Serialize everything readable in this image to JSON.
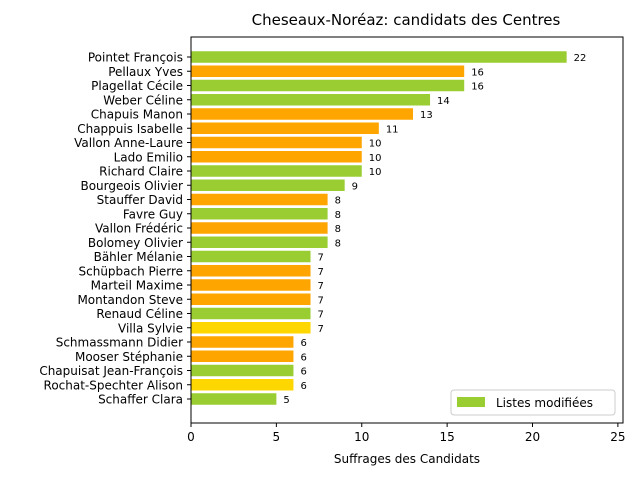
{
  "chart_data": {
    "type": "bar",
    "orientation": "horizontal",
    "title": "Cheseaux-Noréaz: candidats des Centres",
    "xlabel": "Suffrages des Candidats",
    "ylabel": "",
    "xlim": [
      0,
      25.3
    ],
    "xticks": [
      "0",
      "5",
      "10",
      "15",
      "20",
      "25"
    ],
    "grid": false,
    "legend": {
      "position": "bottom-right",
      "label": "Listes modifiées",
      "color": "#9acd32"
    },
    "colors": {
      "green": "#9acd32",
      "orange": "#ffa500",
      "gold": "#ffd700"
    },
    "bars": [
      {
        "name": "Pointet François",
        "value": 22,
        "color": "green"
      },
      {
        "name": "Pellaux Yves",
        "value": 16,
        "color": "orange"
      },
      {
        "name": "Plagellat Cécile",
        "value": 16,
        "color": "green"
      },
      {
        "name": "Weber Céline",
        "value": 14,
        "color": "green"
      },
      {
        "name": "Chapuis Manon",
        "value": 13,
        "color": "orange"
      },
      {
        "name": "Chappuis Isabelle",
        "value": 11,
        "color": "orange"
      },
      {
        "name": "Vallon Anne-Laure",
        "value": 10,
        "color": "orange"
      },
      {
        "name": "Lado Emilio",
        "value": 10,
        "color": "orange"
      },
      {
        "name": "Richard Claire",
        "value": 10,
        "color": "green"
      },
      {
        "name": "Bourgeois Olivier",
        "value": 9,
        "color": "green"
      },
      {
        "name": "Stauffer David",
        "value": 8,
        "color": "orange"
      },
      {
        "name": "Favre Guy",
        "value": 8,
        "color": "green"
      },
      {
        "name": "Vallon Frédéric",
        "value": 8,
        "color": "orange"
      },
      {
        "name": "Bolomey Olivier",
        "value": 8,
        "color": "green"
      },
      {
        "name": "Bähler Mélanie",
        "value": 7,
        "color": "green"
      },
      {
        "name": "Schüpbach Pierre",
        "value": 7,
        "color": "orange"
      },
      {
        "name": "Marteil Maxime",
        "value": 7,
        "color": "orange"
      },
      {
        "name": "Montandon Steve",
        "value": 7,
        "color": "orange"
      },
      {
        "name": "Renaud Céline",
        "value": 7,
        "color": "green"
      },
      {
        "name": "Villa Sylvie",
        "value": 7,
        "color": "gold"
      },
      {
        "name": "Schmassmann Didier",
        "value": 6,
        "color": "orange"
      },
      {
        "name": "Mooser Stéphanie",
        "value": 6,
        "color": "orange"
      },
      {
        "name": "Chapuisat Jean-François",
        "value": 6,
        "color": "green"
      },
      {
        "name": "Rochat-Spechter Alison",
        "value": 6,
        "color": "gold"
      },
      {
        "name": "Schaffer Clara",
        "value": 5,
        "color": "green"
      }
    ]
  }
}
